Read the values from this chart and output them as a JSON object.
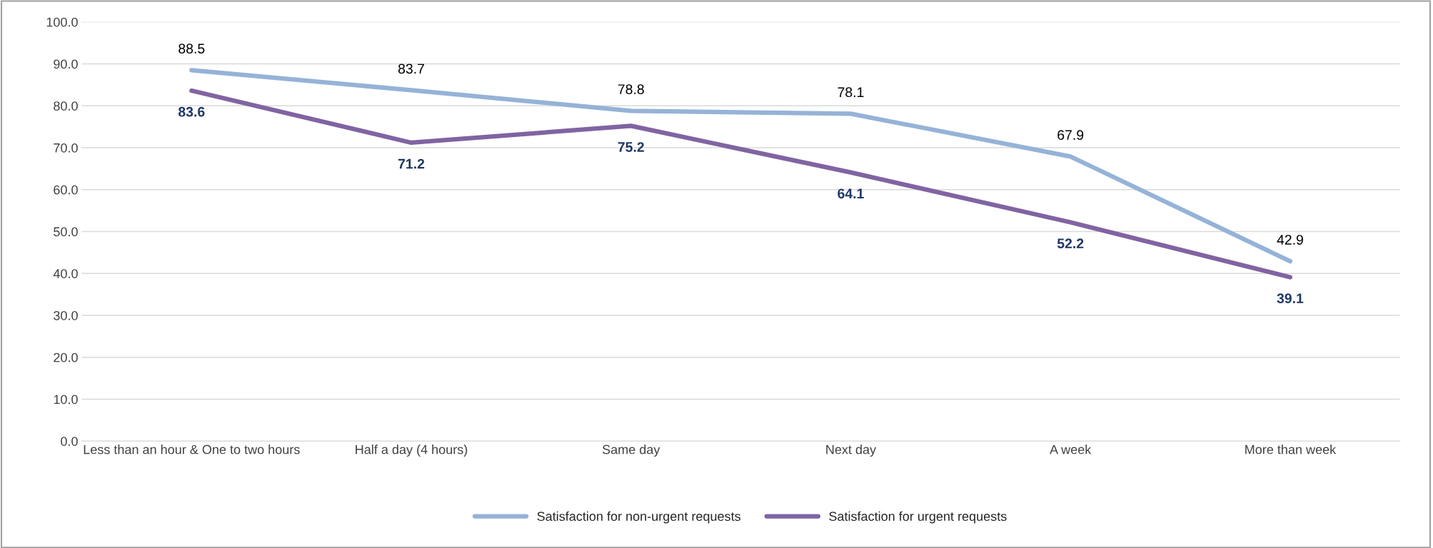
{
  "chart_data": {
    "type": "line",
    "categories": [
      "Less than an hour & One to two hours",
      "Half a day (4 hours)",
      "Same day",
      "Next day",
      "A week",
      "More than week"
    ],
    "series": [
      {
        "name": "Satisfaction for non-urgent requests",
        "color": "#95b3d7",
        "values": [
          88.5,
          83.7,
          78.8,
          78.1,
          67.9,
          42.9
        ]
      },
      {
        "name": "Satisfaction for urgent requests",
        "color": "#8064a2",
        "values": [
          83.6,
          71.2,
          75.2,
          64.1,
          52.2,
          39.1
        ]
      }
    ],
    "ylim": [
      0,
      100
    ],
    "yticks": [
      {
        "value": 0,
        "label": "0.0"
      },
      {
        "value": 10,
        "label": "10.0"
      },
      {
        "value": 20,
        "label": "20.0"
      },
      {
        "value": 30,
        "label": "30.0"
      },
      {
        "value": 40,
        "label": "40.0"
      },
      {
        "value": 50,
        "label": "50.0"
      },
      {
        "value": 60,
        "label": "60.0"
      },
      {
        "value": 70,
        "label": "70.0"
      },
      {
        "value": 80,
        "label": "80.0"
      },
      {
        "value": 90,
        "label": "90.0"
      },
      {
        "value": 100,
        "label": "100.0"
      }
    ],
    "grid": "y",
    "legend": "bottom",
    "data_labels": true,
    "marker": "none",
    "line_style": "solid"
  }
}
